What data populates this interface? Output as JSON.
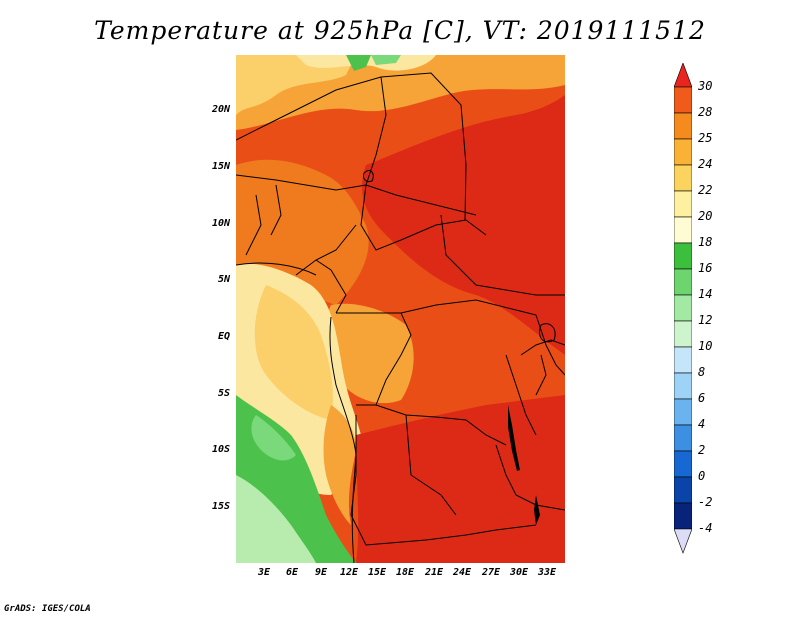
{
  "title": "Temperature at 925hPa [C], VT: 2019111512",
  "credit": "GrADS: IGES/COLA",
  "lat_labels": [
    "20N",
    "15N",
    "10N",
    "5N",
    "EQ",
    "5S",
    "10S",
    "15S"
  ],
  "lon_labels": [
    "3E",
    "6E",
    "9E",
    "12E",
    "15E",
    "18E",
    "21E",
    "24E",
    "27E",
    "30E",
    "33E"
  ],
  "colorbar": {
    "labels": [
      "30",
      "28",
      "25",
      "24",
      "22",
      "20",
      "18",
      "16",
      "14",
      "12",
      "10",
      "8",
      "6",
      "4",
      "2",
      "0",
      "-2",
      "-4"
    ],
    "colors": [
      "#e8251f",
      "#f05a1a",
      "#f58a1e",
      "#f9b136",
      "#fbd460",
      "#fdf0a0",
      "#fffbd3",
      "#3cbf3c",
      "#6ed46e",
      "#a3e9a3",
      "#cdf4cd",
      "#c5e6fa",
      "#9ed2f6",
      "#6bb3ee",
      "#3d8fe2",
      "#1868d3",
      "#0b44a8",
      "#07237a",
      "#0a0a5a"
    ]
  },
  "field_colors": {
    "hot": "#dd2a16",
    "warm": "#ea4e17",
    "orange": "#f07a1e",
    "amber": "#f6a437",
    "yellow": "#fbd06a",
    "pale": "#fce7a0",
    "lightgreen": "#b8ecae",
    "green": "#4cc24c",
    "greenmid": "#7ad97a"
  }
}
